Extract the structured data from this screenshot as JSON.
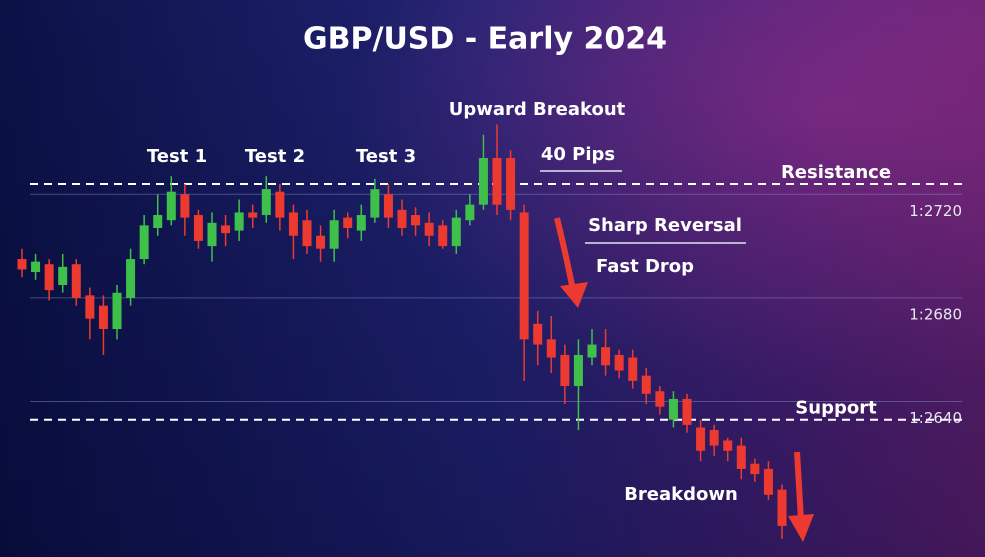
{
  "chart_data": {
    "type": "candlestick",
    "title": "GBP/USD - Early 2024",
    "open": [
      1.2695,
      1.269,
      1.2693,
      1.2685,
      1.2693,
      1.2681,
      1.2677,
      1.2668,
      1.268,
      1.2695,
      1.2707,
      1.271,
      1.272,
      1.2712,
      1.27,
      1.2708,
      1.2706,
      1.2713,
      1.2712,
      1.2721,
      1.2713,
      1.271,
      1.2704,
      1.2699,
      1.2711,
      1.2706,
      1.2711,
      1.272,
      1.2714,
      1.2712,
      1.2709,
      1.2708,
      1.27,
      1.271,
      1.2716,
      1.2734,
      1.2734,
      1.2713,
      1.267,
      1.2664,
      1.2658,
      1.2646,
      1.2657,
      1.2661,
      1.2658,
      1.2657,
      1.265,
      1.2644,
      1.2633,
      1.2641,
      1.263,
      1.2629,
      1.2625,
      1.2623,
      1.2616,
      1.2614,
      1.2606
    ],
    "high": [
      1.2699,
      1.2697,
      1.2695,
      1.2697,
      1.2695,
      1.2684,
      1.2681,
      1.2685,
      1.2699,
      1.2712,
      1.272,
      1.2727,
      1.2724,
      1.2714,
      1.2713,
      1.2712,
      1.2718,
      1.2716,
      1.2727,
      1.2724,
      1.2716,
      1.2714,
      1.2708,
      1.2714,
      1.2713,
      1.2716,
      1.2726,
      1.2724,
      1.2718,
      1.2715,
      1.2713,
      1.271,
      1.2714,
      1.272,
      1.2743,
      1.2747,
      1.2737,
      1.2716,
      1.2675,
      1.2673,
      1.2662,
      1.2664,
      1.2668,
      1.2668,
      1.266,
      1.266,
      1.2653,
      1.2646,
      1.2644,
      1.2643,
      1.2633,
      1.2631,
      1.2626,
      1.2626,
      1.2618,
      1.2617,
      1.2608
    ],
    "low": [
      1.2688,
      1.2687,
      1.2679,
      1.2682,
      1.2677,
      1.2664,
      1.2658,
      1.2664,
      1.2677,
      1.2693,
      1.2704,
      1.2708,
      1.2704,
      1.2699,
      1.2694,
      1.27,
      1.2702,
      1.2707,
      1.2709,
      1.2706,
      1.2695,
      1.2697,
      1.2694,
      1.2694,
      1.2703,
      1.2702,
      1.2709,
      1.2707,
      1.2704,
      1.2704,
      1.27,
      1.2699,
      1.2697,
      1.2708,
      1.2714,
      1.2712,
      1.271,
      1.2648,
      1.2654,
      1.2651,
      1.2639,
      1.2629,
      1.2654,
      1.265,
      1.2649,
      1.2645,
      1.2639,
      1.2635,
      1.263,
      1.2628,
      1.2617,
      1.2619,
      1.2617,
      1.261,
      1.2609,
      1.2602,
      1.2587
    ],
    "close": [
      1.2691,
      1.2694,
      1.2683,
      1.2692,
      1.268,
      1.2672,
      1.2668,
      1.2682,
      1.2695,
      1.2708,
      1.2712,
      1.2721,
      1.2711,
      1.2702,
      1.2709,
      1.2705,
      1.2713,
      1.2711,
      1.2722,
      1.2711,
      1.2704,
      1.27,
      1.2699,
      1.271,
      1.2707,
      1.2712,
      1.2722,
      1.2711,
      1.2707,
      1.2708,
      1.2704,
      1.27,
      1.2711,
      1.2716,
      1.2734,
      1.2716,
      1.2714,
      1.2664,
      1.2662,
      1.2657,
      1.2646,
      1.2658,
      1.2662,
      1.2654,
      1.2652,
      1.2648,
      1.2643,
      1.2638,
      1.2641,
      1.2631,
      1.2621,
      1.2623,
      1.2621,
      1.2614,
      1.2612,
      1.2604,
      1.2592
    ],
    "up_color": "#3fc04a",
    "down_color": "#ec3a30",
    "ylim": [
      1.258,
      1.2795
    ],
    "yticks": [
      {
        "value": 1.272,
        "label": "1:2720"
      },
      {
        "value": 1.268,
        "label": "1:2680"
      },
      {
        "value": 1.264,
        "label": "1:2640"
      }
    ],
    "grid": true,
    "resistance": {
      "label": "Resistance",
      "value": 1.2724
    },
    "support": {
      "label": "Support",
      "value": 1.2633
    },
    "annotations": [
      "Test 1",
      "Test 2",
      "Test 3",
      "Upward Breakout",
      "40 Pips",
      "Sharp Reversal",
      "Fast Drop",
      "Breakdown"
    ]
  }
}
